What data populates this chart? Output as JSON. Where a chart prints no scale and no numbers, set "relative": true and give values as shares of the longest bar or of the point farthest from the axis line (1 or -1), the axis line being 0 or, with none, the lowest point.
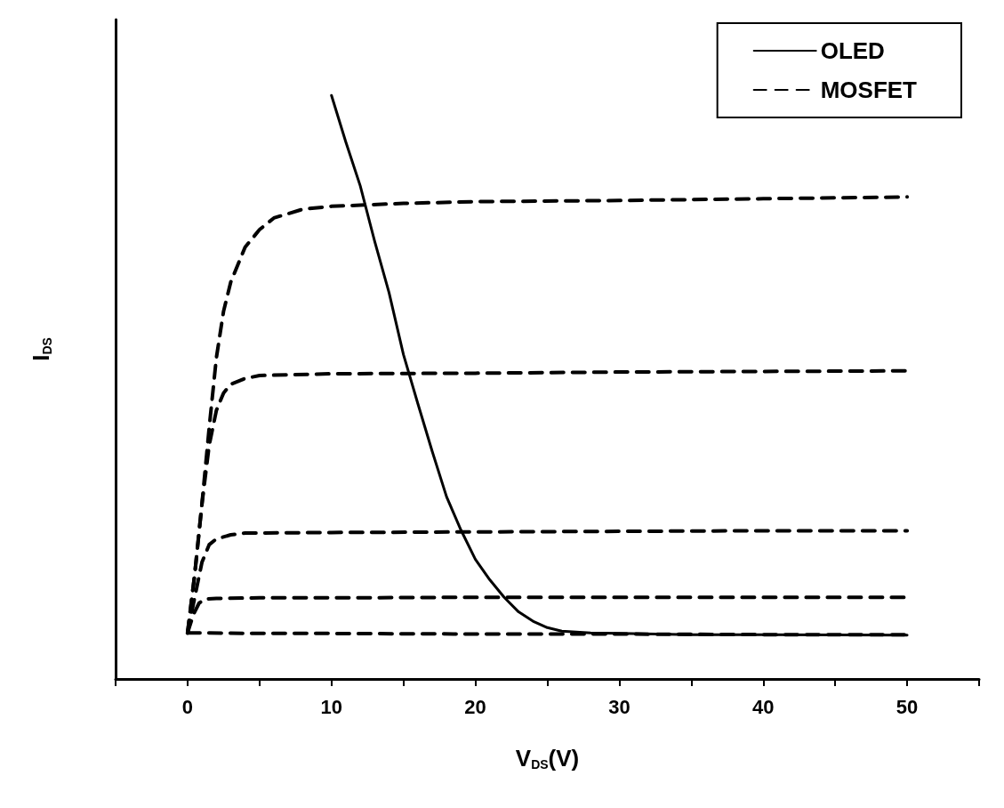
{
  "chart_data": {
    "type": "line",
    "xlabel": "V$_{DS}$(V)",
    "ylabel": "I$_{DS}$",
    "relative": true,
    "xlim": [
      -5,
      55
    ],
    "xticks": [
      {
        "value": -5,
        "label": null
      },
      0,
      {
        "value": 5,
        "label": null
      },
      10,
      {
        "value": 15,
        "label": null
      },
      20,
      {
        "value": 25,
        "label": null
      },
      30,
      {
        "value": 35,
        "label": null
      },
      40,
      {
        "value": 45,
        "label": null
      },
      50,
      {
        "value": 55,
        "label": null
      }
    ],
    "grid": false,
    "legend": "top right",
    "marker": "none",
    "series": [
      {
        "name": "OLED",
        "color": "#000000",
        "line_style": "solid",
        "x": [
          10,
          11,
          12,
          13,
          14,
          15,
          16,
          17,
          18,
          19,
          20,
          21,
          22,
          23,
          24,
          25,
          26,
          28,
          30,
          35,
          40,
          50
        ],
        "values": [
          1.0,
          0.92,
          0.845,
          0.75,
          0.662,
          0.556,
          0.472,
          0.39,
          0.312,
          0.255,
          0.205,
          0.17,
          0.14,
          0.115,
          0.099,
          0.088,
          0.082,
          0.079,
          0.078,
          0.076,
          0.076,
          0.075
        ]
      },
      {
        "name": "MOSFET",
        "color": "#000000",
        "line_style": "dashed",
        "x": [
          0,
          0.5,
          1,
          1.5,
          2,
          2.5,
          3,
          4,
          5,
          6,
          8,
          10,
          15,
          20,
          30,
          40,
          50
        ],
        "values": [
          0.079,
          0.18,
          0.3,
          0.43,
          0.55,
          0.63,
          0.68,
          0.74,
          0.77,
          0.79,
          0.805,
          0.81,
          0.815,
          0.818,
          0.82,
          0.823,
          0.826
        ]
      },
      {
        "color": "#000000",
        "line_style": "dashed",
        "x": [
          0,
          0.5,
          1,
          1.5,
          2,
          2.5,
          3,
          4,
          5,
          10,
          20,
          30,
          40,
          50
        ],
        "values": [
          0.079,
          0.18,
          0.3,
          0.4,
          0.46,
          0.49,
          0.505,
          0.515,
          0.52,
          0.523,
          0.524,
          0.526,
          0.527,
          0.528
        ]
      },
      {
        "color": "#000000",
        "line_style": "dashed",
        "x": [
          0,
          0.5,
          1,
          1.5,
          2,
          3,
          4,
          10,
          20,
          30,
          40,
          50
        ],
        "values": [
          0.079,
          0.14,
          0.2,
          0.23,
          0.24,
          0.247,
          0.25,
          0.251,
          0.252,
          0.253,
          0.254,
          0.254
        ]
      },
      {
        "color": "#000000",
        "line_style": "dashed",
        "x": [
          0,
          0.4,
          0.8,
          1.2,
          2,
          5,
          10,
          20,
          30,
          40,
          50
        ],
        "values": [
          0.079,
          0.11,
          0.13,
          0.137,
          0.138,
          0.139,
          0.139,
          0.14,
          0.14,
          0.14,
          0.14
        ]
      },
      {
        "color": "#000000",
        "line_style": "dashed",
        "x": [
          0,
          1,
          5,
          10,
          20,
          30,
          40,
          50
        ],
        "values": [
          0.079,
          0.079,
          0.078,
          0.078,
          0.077,
          0.077,
          0.076,
          0.076
        ]
      }
    ]
  }
}
